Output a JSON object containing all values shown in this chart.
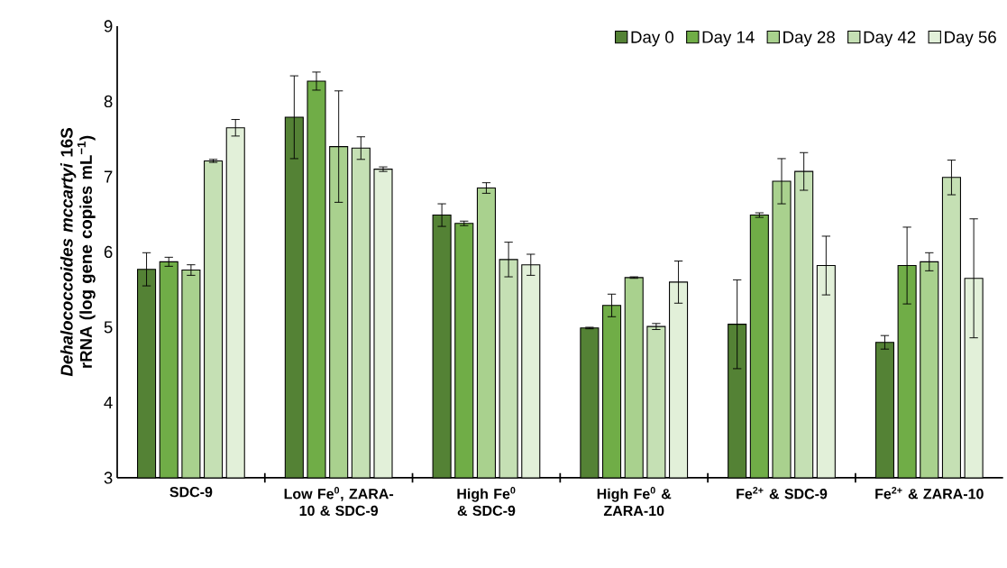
{
  "chart_data": {
    "type": "bar",
    "ylabel": "*Dehalococcoides mccartyi* 16S rRNA (log gene copies mL$^{−1}$)",
    "categories": [
      "SDC-9",
      "Low Fe$^{0}$, ZARA-10 & SDC-9",
      "High Fe$^{0}$ & SDC-9",
      "High Fe$^{0}$ & ZARA-10",
      "Fe$^{2+}$ & SDC-9",
      "Fe$^{2+}$ & ZARA-10"
    ],
    "series": [
      {
        "name": "Day 0",
        "color": "#548235",
        "values": [
          5.77,
          7.79,
          6.49,
          4.99,
          5.04,
          4.8
        ],
        "errors": [
          0.22,
          0.55,
          0.15,
          0.01,
          0.59,
          0.09
        ]
      },
      {
        "name": "Day 14",
        "color": "#70ad47",
        "values": [
          5.87,
          8.27,
          6.38,
          5.29,
          6.49,
          5.82
        ],
        "errors": [
          0.06,
          0.12,
          0.03,
          0.15,
          0.03,
          0.51
        ]
      },
      {
        "name": "Day 28",
        "color": "#a9d18e",
        "values": [
          5.76,
          7.4,
          6.85,
          5.66,
          6.94,
          5.87
        ],
        "errors": [
          0.07,
          0.74,
          0.07,
          0.01,
          0.3,
          0.12
        ]
      },
      {
        "name": "Day 42",
        "color": "#c5e0b4",
        "values": [
          7.21,
          7.38,
          5.9,
          5.01,
          7.07,
          6.99
        ],
        "errors": [
          0.02,
          0.15,
          0.23,
          0.04,
          0.25,
          0.23
        ]
      },
      {
        "name": "Day 56",
        "color": "#e2f0d9",
        "values": [
          7.65,
          7.1,
          5.83,
          5.6,
          5.82,
          5.65
        ],
        "errors": [
          0.11,
          0.03,
          0.14,
          0.28,
          0.39,
          0.79
        ]
      }
    ],
    "ylim": [
      3,
      9
    ],
    "yticks": [
      3,
      4,
      5,
      6,
      7,
      8,
      9
    ],
    "grid": false,
    "legend": "top right"
  }
}
